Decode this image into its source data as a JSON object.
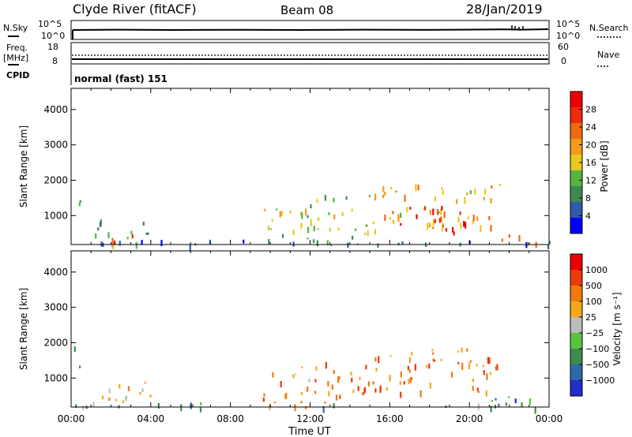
{
  "header": {
    "station": "Clyde River (fitACF)",
    "beam": "Beam 08",
    "date": "28/Jan/2019"
  },
  "top_panels": {
    "nsky_label": "N.Sky",
    "nsearch_label": "N.Search",
    "nsky_ticks": [
      "10^5",
      "10^0"
    ],
    "nsearch_ticks": [
      "10^5",
      "10^0"
    ],
    "freq_label_1": "Freq.",
    "freq_label_2": "[MHz]",
    "freq_ticks": [
      "18",
      "8"
    ],
    "nave_label": "Nave",
    "nave_ticks": [
      "60",
      "0"
    ],
    "cpid_label": "CPID",
    "cpid_value": "normal (fast) 151"
  },
  "colors": {
    "power": [
      "#0000ff",
      "#2f5ba8",
      "#3e8a50",
      "#58b43e",
      "#e8c81c",
      "#f59a1a",
      "#f06a10",
      "#ee2a0a",
      "#ee0000"
    ],
    "velocity": [
      "#2030c8",
      "#2f6aa8",
      "#3e8a50",
      "#58c43e",
      "#bdbdbd",
      "#f5a81a",
      "#f07a10",
      "#ee3a0a",
      "#ee0000"
    ]
  },
  "chart_data": [
    {
      "type": "heatmap",
      "name": "power",
      "ylabel": "Slant Range [km]",
      "xlabel": "",
      "xlim": [
        0,
        24
      ],
      "ylim": [
        180,
        4600
      ],
      "x_ticks": [
        "00:00",
        "04:00",
        "08:00",
        "12:00",
        "16:00",
        "20:00",
        "00:00"
      ],
      "y_ticks": [
        1000,
        2000,
        3000,
        4000
      ],
      "colorbar": {
        "label": "Power [dB]",
        "ticks": [
          "28",
          "24",
          "20",
          "16",
          "12",
          "8",
          "4"
        ],
        "range": [
          0,
          32
        ]
      },
      "echo_regions": [
        {
          "t0": 0.1,
          "t1": 0.5,
          "r0": 1200,
          "r1": 2000,
          "level": 0.35
        },
        {
          "t0": 1.0,
          "t1": 4.2,
          "r0": 200,
          "r1": 900,
          "level": 0.3
        },
        {
          "t0": 2.0,
          "t1": 3.5,
          "r0": 200,
          "r1": 500,
          "level": 0.85
        },
        {
          "t0": 0.0,
          "t1": 24.0,
          "r0": 180,
          "r1": 320,
          "level": 0.15
        },
        {
          "t0": 9.5,
          "t1": 12.0,
          "r0": 200,
          "r1": 1400,
          "level": 0.45
        },
        {
          "t0": 12.0,
          "t1": 15.0,
          "r0": 300,
          "r1": 1600,
          "level": 0.4
        },
        {
          "t0": 15.0,
          "t1": 21.5,
          "r0": 600,
          "r1": 1900,
          "level": 0.6
        },
        {
          "t0": 16.5,
          "t1": 20.0,
          "r0": 500,
          "r1": 1300,
          "level": 0.95
        },
        {
          "t0": 21.0,
          "t1": 23.5,
          "r0": 200,
          "r1": 500,
          "level": 0.7
        }
      ]
    },
    {
      "type": "heatmap",
      "name": "velocity",
      "ylabel": "Slant Range [km]",
      "xlabel": "Time UT",
      "xlim": [
        0,
        24
      ],
      "ylim": [
        180,
        4600
      ],
      "x_ticks": [
        "00:00",
        "04:00",
        "08:00",
        "12:00",
        "16:00",
        "20:00",
        "00:00"
      ],
      "y_ticks": [
        1000,
        2000,
        3000,
        4000
      ],
      "colorbar": {
        "label": "Velocity [m s⁻¹]",
        "ticks": [
          "1000",
          "500",
          "100",
          "25",
          "−25",
          "−100",
          "−500",
          "−1000"
        ]
      },
      "echo_regions": [
        {
          "t0": 0.1,
          "t1": 0.5,
          "r0": 1200,
          "r1": 2000,
          "level": 0.25
        },
        {
          "t0": 1.0,
          "t1": 4.2,
          "r0": 200,
          "r1": 900,
          "level": 0.55
        },
        {
          "t0": 0.0,
          "t1": 24.0,
          "r0": 180,
          "r1": 320,
          "level": 0.35
        },
        {
          "t0": 9.5,
          "t1": 12.0,
          "r0": 200,
          "r1": 1400,
          "level": 0.65
        },
        {
          "t0": 12.0,
          "t1": 15.0,
          "r0": 300,
          "r1": 1600,
          "level": 0.7
        },
        {
          "t0": 15.0,
          "t1": 21.5,
          "r0": 600,
          "r1": 1900,
          "level": 0.72
        },
        {
          "t0": 21.0,
          "t1": 23.5,
          "r0": 200,
          "r1": 500,
          "level": 0.2
        }
      ]
    }
  ]
}
